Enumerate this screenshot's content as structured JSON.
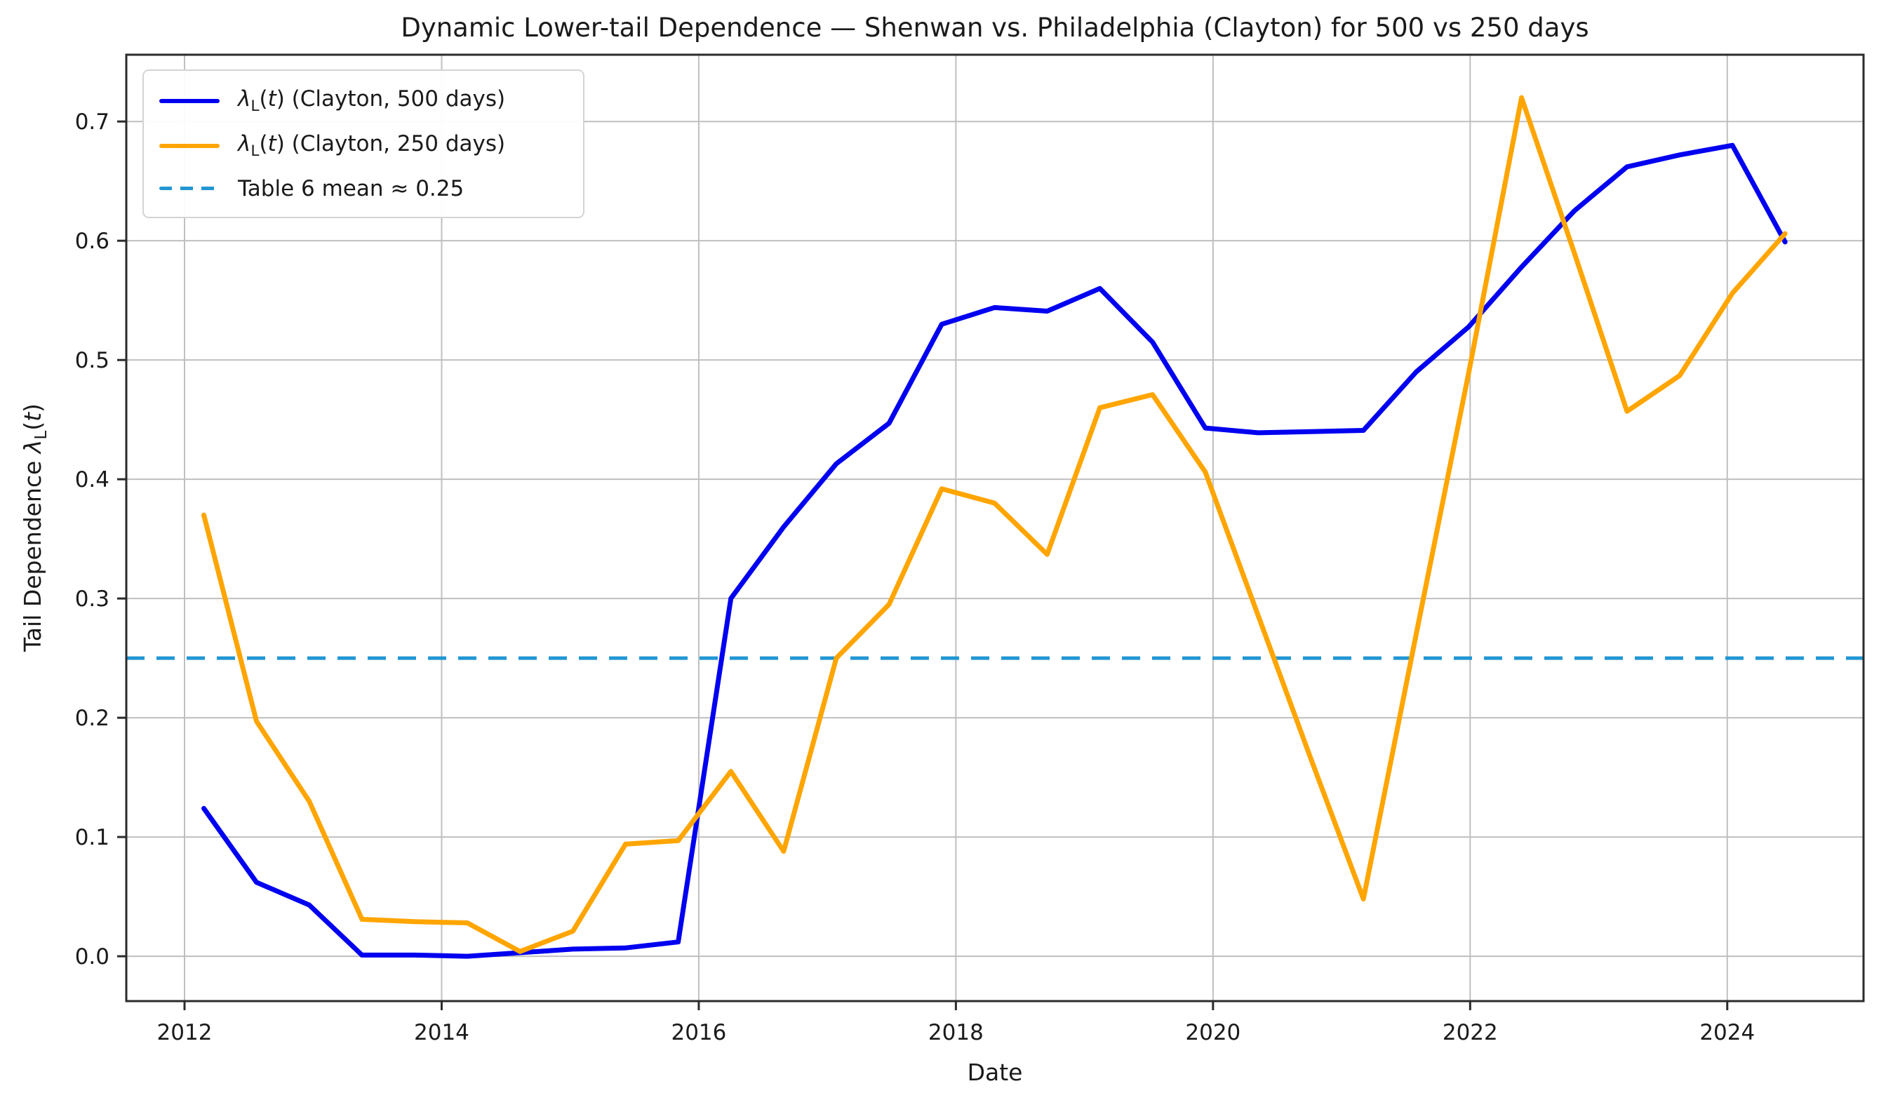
{
  "figure": {
    "title": "Dynamic Lower-tail Dependence — Shenwan vs. Philadelphia (Clayton) for 500 vs 250 days",
    "xlabel": "Date",
    "ylabel": "Tail Dependence λ_L(t)"
  },
  "legend": {
    "items": [
      {
        "label": "λ_L(t) (Clayton, 500 days)",
        "color": "#0000f0",
        "style": "solid"
      },
      {
        "label": "λ_L(t) (Clayton, 250 days)",
        "color": "#ffa500",
        "style": "solid"
      },
      {
        "label": "Table 6 mean ≈ 0.25",
        "color": "#2196d3",
        "style": "dashed"
      }
    ]
  },
  "chart_data": {
    "type": "line",
    "title": "Dynamic Lower-tail Dependence — Shenwan vs. Philadelphia (Clayton) for 500 vs 250 days",
    "xlabel": "Date",
    "ylabel": "Tail Dependence λ_L(t)",
    "xlim": [
      2011.547,
      2025.06
    ],
    "ylim": [
      -0.0376,
      0.756
    ],
    "xticks": [
      2012,
      2014,
      2016,
      2018,
      2020,
      2022,
      2024
    ],
    "yticks": [
      0.0,
      0.1,
      0.2,
      0.3,
      0.4,
      0.5,
      0.6,
      0.7
    ],
    "grid": true,
    "grid_color": "#bfbfbf",
    "legend_position": "upper left",
    "x": [
      2012.15,
      2012.56,
      2012.97,
      2013.38,
      2013.79,
      2014.2,
      2014.61,
      2015.02,
      2015.43,
      2015.84,
      2016.25,
      2016.66,
      2017.07,
      2017.48,
      2017.89,
      2018.3,
      2018.71,
      2019.12,
      2019.53,
      2019.94,
      2020.35,
      2020.76,
      2021.17,
      2021.58,
      2021.99,
      2022.4,
      2022.81,
      2023.22,
      2023.63,
      2024.04,
      2024.45
    ],
    "series": [
      {
        "name": "λ_L(t) (Clayton, 500 days)",
        "color": "#0000f0",
        "values": [
          0.124,
          0.062,
          0.043,
          0.001,
          0.001,
          0.0,
          0.003,
          0.006,
          0.007,
          0.012,
          0.3,
          0.36,
          0.413,
          0.447,
          0.53,
          0.544,
          0.541,
          0.56,
          0.515,
          0.443,
          0.439,
          0.44,
          0.441,
          0.49,
          0.528,
          0.578,
          0.625,
          0.662,
          0.672,
          0.68,
          0.599
        ]
      },
      {
        "name": "λ_L(t) (Clayton, 250 days)",
        "color": "#ffa500",
        "values": [
          0.37,
          0.197,
          0.13,
          0.031,
          0.029,
          0.028,
          0.004,
          0.021,
          0.094,
          0.097,
          0.155,
          0.088,
          0.25,
          0.295,
          0.392,
          0.38,
          0.337,
          0.46,
          0.471,
          0.406,
          0.286,
          0.166,
          0.048,
          0.27,
          0.49,
          0.72,
          0.59,
          0.457,
          0.487,
          0.556,
          0.606
        ]
      }
    ],
    "reference_line": {
      "label": "Table 6 mean ≈ 0.25",
      "value": 0.25,
      "color": "#2196d3",
      "style": "dashed"
    }
  }
}
